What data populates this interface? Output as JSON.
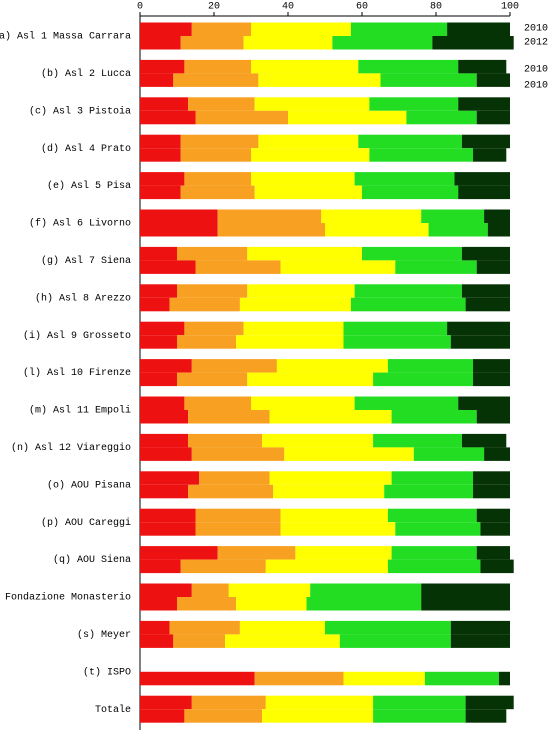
{
  "chart_data": {
    "type": "stacked-bar-pairs",
    "categories": [
      "a) Asl 1 Massa Carrara",
      "(b) Asl 2 Lucca",
      "(c) Asl 3 Pistoia",
      "(d) Asl 4 Prato",
      "(e) Asl 5 Pisa",
      "(f) Asl 6 Livorno",
      "(g) Asl 7 Siena",
      "(h) Asl 8 Arezzo",
      "(i) Asl 9 Grosseto",
      "(l) Asl 10 Firenze",
      "(m) Asl 11 Empoli",
      "(n) Asl 12 Viareggio",
      "(o) AOU Pisana",
      "(p) AOU Careggi",
      "(q) AOU Siena",
      "Fondazione Monasterio",
      "(s) Meyer",
      "(t) ISPO",
      "Totale"
    ],
    "year_labels": [
      "2010",
      "2012",
      "2010",
      "2010"
    ],
    "xlim": [
      0,
      100
    ],
    "xticks": [
      0,
      20,
      40,
      60,
      80,
      100
    ],
    "bars": [
      {
        "series": [
          {
            "color": "#ee1111",
            "values": [
              14,
              12,
              13,
              11,
              12,
              21,
              10,
              10,
              12,
              14,
              12,
              13,
              16,
              15,
              21,
              14,
              8,
              null,
              14
            ]
          },
          {
            "color": "#f7a021",
            "values": [
              16,
              18,
              18,
              21,
              18,
              28,
              19,
              19,
              16,
              23,
              18,
              20,
              19,
              23,
              21,
              10,
              19,
              null,
              20
            ]
          },
          {
            "color": "#ffff00",
            "values": [
              27,
              29,
              31,
              27,
              28,
              27,
              31,
              29,
              27,
              30,
              28,
              30,
              33,
              29,
              26,
              22,
              23,
              null,
              29
            ]
          },
          {
            "color": "#22dd22",
            "values": [
              26,
              27,
              24,
              28,
              27,
              17,
              27,
              29,
              28,
              23,
              28,
              24,
              22,
              24,
              23,
              30,
              34,
              null,
              25
            ]
          },
          {
            "color": "#063306",
            "values": [
              17,
              13,
              14,
              13,
              15,
              7,
              13,
              13,
              17,
              10,
              14,
              12,
              10,
              9,
              9,
              24,
              16,
              null,
              13
            ]
          }
        ]
      },
      {
        "series": [
          {
            "color": "#ee1111",
            "values": [
              11,
              9,
              15,
              11,
              11,
              21,
              15,
              8,
              10,
              10,
              13,
              14,
              13,
              15,
              11,
              10,
              9,
              31,
              12
            ]
          },
          {
            "color": "#f7a021",
            "values": [
              17,
              23,
              25,
              19,
              20,
              29,
              23,
              19,
              16,
              19,
              22,
              25,
              23,
              23,
              23,
              16,
              14,
              24,
              21
            ]
          },
          {
            "color": "#ffff00",
            "values": [
              24,
              33,
              32,
              32,
              29,
              28,
              31,
              30,
              29,
              34,
              33,
              35,
              30,
              31,
              33,
              19,
              31,
              22,
              30
            ]
          },
          {
            "color": "#22dd22",
            "values": [
              27,
              26,
              19,
              28,
              26,
              16,
              22,
              31,
              29,
              27,
              23,
              19,
              24,
              23,
              25,
              31,
              30,
              20,
              25
            ]
          },
          {
            "color": "#063306",
            "values": [
              22,
              9,
              9,
              9,
              14,
              6,
              9,
              12,
              16,
              10,
              9,
              7,
              10,
              8,
              9,
              24,
              16,
              3,
              11
            ]
          }
        ]
      }
    ]
  }
}
